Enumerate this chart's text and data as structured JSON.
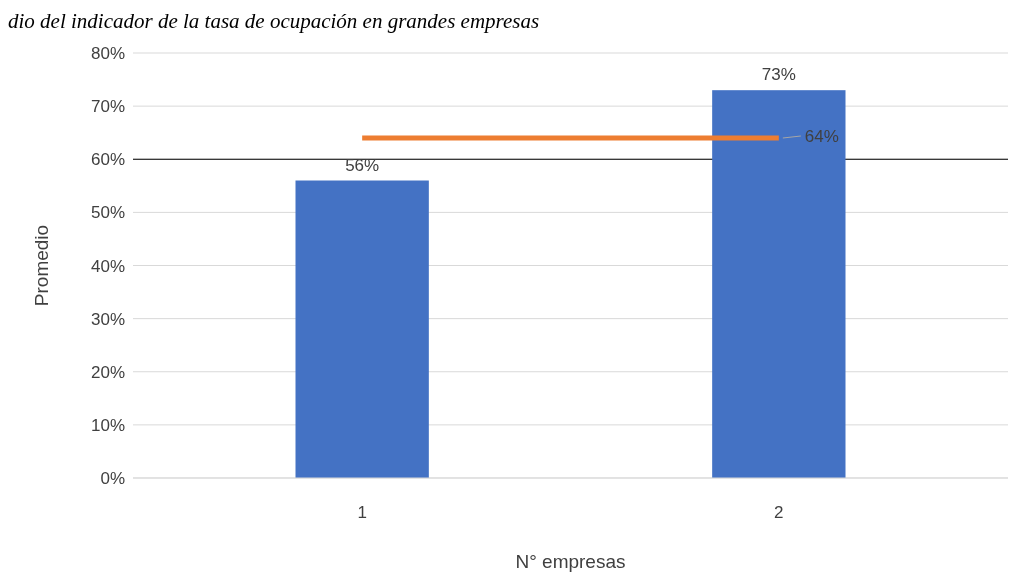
{
  "chart_data": {
    "type": "bar",
    "title": "dio del indicador de la tasa de ocupación en grandes empresas",
    "xlabel": "N° empresas",
    "ylabel": "Promedio",
    "categories": [
      "1",
      "2"
    ],
    "series": [
      {
        "color": "#4472c4",
        "values": [
          56,
          73
        ],
        "value_labels": [
          "56%",
          "73%"
        ]
      },
      {
        "type": "line",
        "color": "#ed7d31",
        "values": [
          64,
          64
        ],
        "value_labels": [
          null,
          "64%"
        ]
      }
    ],
    "ylim": [
      0,
      80
    ],
    "yticks": [
      {
        "value": 0,
        "label": "0%"
      },
      {
        "value": 10,
        "label": "10%"
      },
      {
        "value": 20,
        "label": "20%"
      },
      {
        "value": 30,
        "label": "30%"
      },
      {
        "value": 40,
        "label": "40%"
      },
      {
        "value": 50,
        "label": "50%"
      },
      {
        "value": 60,
        "label": "60%"
      },
      {
        "value": 70,
        "label": "70%"
      },
      {
        "value": 80,
        "label": "80%"
      }
    ],
    "ref_lines": [
      {
        "axis": "y",
        "value": 60,
        "color": "#000000"
      }
    ],
    "grid": "y"
  }
}
